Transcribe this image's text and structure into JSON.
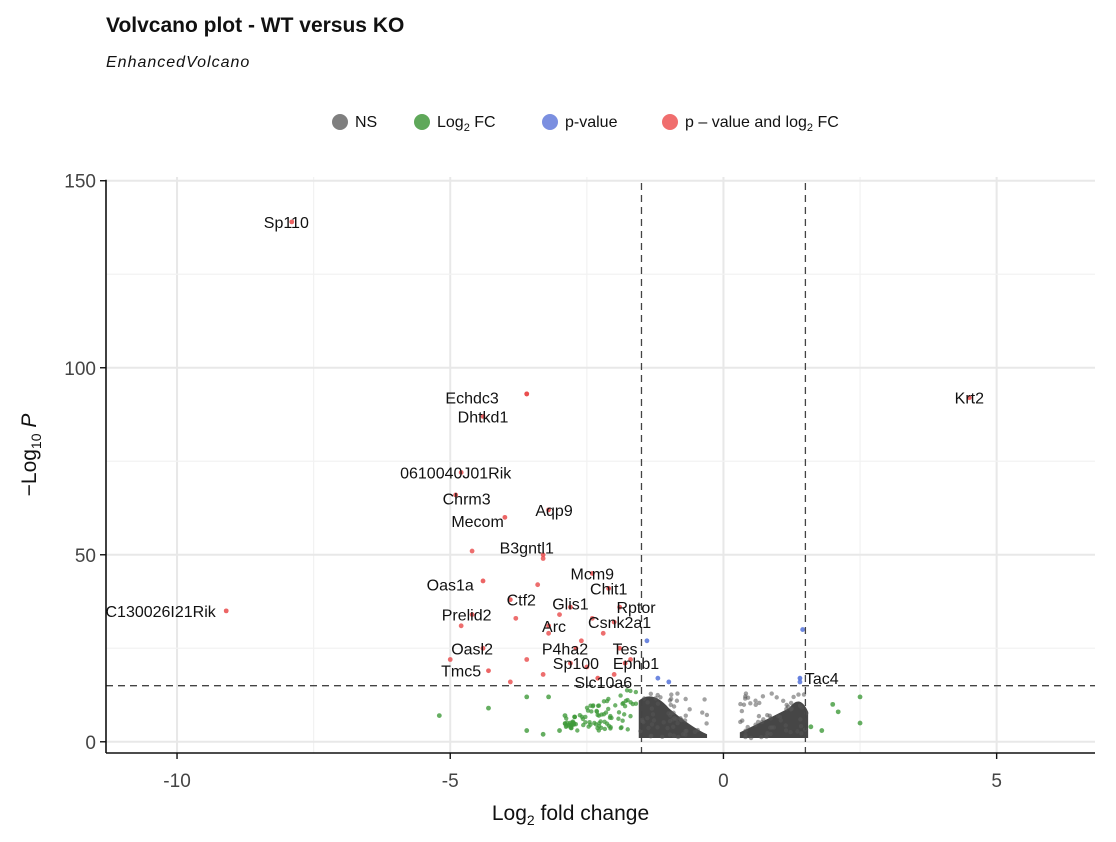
{
  "chart_data": {
    "type": "scatter",
    "title": "Volvcano plot - WT versus KO",
    "subtitle": "EnhancedVolcano",
    "xlabel": {
      "base": "Log",
      "sub": "2",
      "rest": " fold change"
    },
    "ylabel": {
      "prefix": "−Log",
      "sub": "10",
      "rest": " P"
    },
    "xlim": [
      -11.3,
      6.8
    ],
    "ylim": [
      -3,
      151
    ],
    "x_ticks": [
      -10,
      -5,
      0,
      5
    ],
    "x_tick_labels": [
      "-10",
      "-5",
      "0",
      "5"
    ],
    "y_ticks": [
      0,
      50,
      100,
      150
    ],
    "y_tick_labels": [
      "0",
      "50",
      "100",
      "150"
    ],
    "fc_cutoff": 1.5,
    "p_cutoff": 15,
    "grid": true,
    "legend_position": "top",
    "legend": [
      {
        "key": "NS",
        "color": "#7f7f7f",
        "parts": [
          [
            "NS",
            ""
          ]
        ]
      },
      {
        "key": "FC",
        "color": "#5fa85a",
        "parts": [
          [
            "Log",
            ""
          ],
          [
            "2",
            "sub"
          ],
          [
            " FC",
            ""
          ]
        ]
      },
      {
        "key": "P",
        "color": "#7b8fe0",
        "parts": [
          [
            "p-value",
            ""
          ]
        ]
      },
      {
        "key": "PFC",
        "color": "#f06e6e",
        "parts": [
          [
            "p – value and log",
            ""
          ],
          [
            "2",
            "sub"
          ],
          [
            " FC",
            ""
          ]
        ]
      }
    ],
    "colors": {
      "NS": "#4a4a4a",
      "FC": "#3f9a3a",
      "P": "#4a6ad8",
      "PFC": "#e94a4a"
    },
    "labeled_points": [
      {
        "label": "Sp110",
        "x": -7.9,
        "y": 139,
        "lx": -8.0,
        "ly": 139
      },
      {
        "label": "Echdc3",
        "x": -3.6,
        "y": 93,
        "lx": -4.6,
        "ly": 92
      },
      {
        "label": "Krt2",
        "x": 4.5,
        "y": 92,
        "lx": 4.5,
        "ly": 92
      },
      {
        "label": "Dhtkd1",
        "x": -4.4,
        "y": 87,
        "lx": -4.4,
        "ly": 87
      },
      {
        "label": "0610040J01Rik",
        "x": -4.8,
        "y": 72,
        "lx": -4.9,
        "ly": 72
      },
      {
        "label": "Chrm3",
        "x": -4.9,
        "y": 66,
        "lx": -4.7,
        "ly": 65
      },
      {
        "label": "Aqp9",
        "x": -3.2,
        "y": 62,
        "lx": -3.1,
        "ly": 62
      },
      {
        "label": "Mecom",
        "x": -4.0,
        "y": 60,
        "lx": -4.5,
        "ly": 59
      },
      {
        "label": "B3gntl1",
        "x": -3.3,
        "y": 50,
        "lx": -3.6,
        "ly": 52
      },
      {
        "label": "Mcm9",
        "x": -2.4,
        "y": 45,
        "lx": -2.4,
        "ly": 45
      },
      {
        "label": "Oas1a",
        "x": -4.4,
        "y": 43,
        "lx": -5.0,
        "ly": 42
      },
      {
        "label": "Chit1",
        "x": -2.1,
        "y": 41,
        "lx": -2.1,
        "ly": 41
      },
      {
        "label": "Ctf2",
        "x": -3.9,
        "y": 38,
        "lx": -3.7,
        "ly": 38
      },
      {
        "label": "Glis1",
        "x": -2.8,
        "y": 36,
        "lx": -2.8,
        "ly": 37
      },
      {
        "label": "Rptor",
        "x": -1.9,
        "y": 36,
        "lx": -1.6,
        "ly": 36
      },
      {
        "label": "C130026I21Rik",
        "x": -9.1,
        "y": 35,
        "lx": -10.3,
        "ly": 35
      },
      {
        "label": "Prelid2",
        "x": -4.6,
        "y": 34,
        "lx": -4.7,
        "ly": 34
      },
      {
        "label": "Csnk2a1",
        "x": -2.0,
        "y": 32,
        "lx": -1.9,
        "ly": 32
      },
      {
        "label": "Arc",
        "x": -3.2,
        "y": 31,
        "lx": -3.1,
        "ly": 31
      },
      {
        "label": "Oasl2",
        "x": -4.4,
        "y": 25,
        "lx": -4.6,
        "ly": 25
      },
      {
        "label": "P4ha2",
        "x": -2.7,
        "y": 25,
        "lx": -2.9,
        "ly": 25
      },
      {
        "label": "Tes",
        "x": -1.9,
        "y": 25,
        "lx": -1.8,
        "ly": 25
      },
      {
        "label": "Sp100",
        "x": -2.8,
        "y": 21,
        "lx": -2.7,
        "ly": 21
      },
      {
        "label": "Ephb1",
        "x": -1.8,
        "y": 21,
        "lx": -1.6,
        "ly": 21
      },
      {
        "label": "Tmc5",
        "x": -4.3,
        "y": 19,
        "lx": -4.8,
        "ly": 19
      },
      {
        "label": "Slc10a6",
        "x": -2.3,
        "y": 17,
        "lx": -2.2,
        "ly": 16
      },
      {
        "label": "Tac4",
        "x": 1.4,
        "y": 17,
        "lx": 1.8,
        "ly": 17
      }
    ],
    "other_points": [
      {
        "x": -3.6,
        "y": 93,
        "c": "PFC"
      },
      {
        "x": -4.6,
        "y": 51,
        "c": "PFC"
      },
      {
        "x": -3.3,
        "y": 49,
        "c": "PFC"
      },
      {
        "x": -3.4,
        "y": 42,
        "c": "PFC"
      },
      {
        "x": -3.0,
        "y": 34,
        "c": "PFC"
      },
      {
        "x": -2.4,
        "y": 33,
        "c": "PFC"
      },
      {
        "x": -4.8,
        "y": 31,
        "c": "PFC"
      },
      {
        "x": -3.2,
        "y": 29,
        "c": "PFC"
      },
      {
        "x": -2.6,
        "y": 27,
        "c": "PFC"
      },
      {
        "x": -5.0,
        "y": 22,
        "c": "PFC"
      },
      {
        "x": -3.6,
        "y": 22,
        "c": "PFC"
      },
      {
        "x": -3.3,
        "y": 18,
        "c": "PFC"
      },
      {
        "x": -3.9,
        "y": 16,
        "c": "PFC"
      },
      {
        "x": -2.0,
        "y": 18,
        "c": "PFC"
      },
      {
        "x": -2.5,
        "y": 20,
        "c": "PFC"
      },
      {
        "x": -1.7,
        "y": 22,
        "c": "PFC"
      },
      {
        "x": -2.2,
        "y": 29,
        "c": "PFC"
      },
      {
        "x": -3.8,
        "y": 33,
        "c": "PFC"
      },
      {
        "x": -1.4,
        "y": 27,
        "c": "P"
      },
      {
        "x": -1.2,
        "y": 17,
        "c": "P"
      },
      {
        "x": -1.0,
        "y": 16,
        "c": "P"
      },
      {
        "x": 1.4,
        "y": 16,
        "c": "P"
      },
      {
        "x": 1.45,
        "y": 30,
        "c": "P"
      },
      {
        "x": -5.2,
        "y": 7,
        "c": "FC"
      },
      {
        "x": -4.3,
        "y": 9,
        "c": "FC"
      },
      {
        "x": -3.6,
        "y": 3,
        "c": "FC"
      },
      {
        "x": -3.0,
        "y": 3,
        "c": "FC"
      },
      {
        "x": -2.8,
        "y": 5,
        "c": "FC"
      },
      {
        "x": -3.3,
        "y": 2,
        "c": "FC"
      },
      {
        "x": -3.6,
        "y": 12,
        "c": "FC"
      },
      {
        "x": -3.2,
        "y": 12,
        "c": "FC"
      },
      {
        "x": -2.9,
        "y": 7,
        "c": "FC"
      },
      {
        "x": 2.5,
        "y": 12,
        "c": "FC"
      },
      {
        "x": 2.5,
        "y": 5,
        "c": "FC"
      },
      {
        "x": 2.1,
        "y": 8,
        "c": "FC"
      },
      {
        "x": 1.8,
        "y": 3,
        "c": "FC"
      },
      {
        "x": 1.6,
        "y": 4,
        "c": "FC"
      },
      {
        "x": 2.0,
        "y": 10,
        "c": "FC"
      }
    ]
  }
}
